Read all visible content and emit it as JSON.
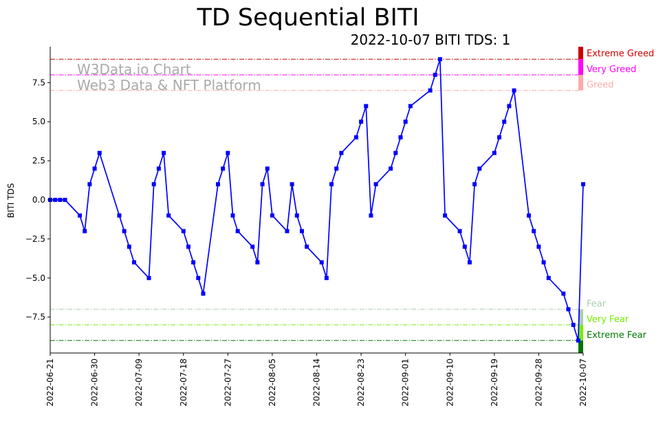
{
  "chart_data": {
    "type": "line",
    "title": "TD Sequential BITI",
    "subtitle": "2022-10-07 BITI TDS: 1",
    "xlabel": "",
    "ylabel": "BITI TDS",
    "ylim": [
      -9.8,
      9.8
    ],
    "xlim": [
      "2022-06-21",
      "2022-10-07"
    ],
    "yticks": [
      -7.5,
      -5.0,
      -2.5,
      0.0,
      2.5,
      5.0,
      7.5
    ],
    "ytick_labels": [
      "−7.5",
      "−5.0",
      "−2.5",
      "0.0",
      "2.5",
      "5.0",
      "7.5"
    ],
    "xticks": [
      "2022-06-21",
      "2022-06-30",
      "2022-07-09",
      "2022-07-18",
      "2022-07-27",
      "2022-08-05",
      "2022-08-14",
      "2022-08-23",
      "2022-09-01",
      "2022-09-10",
      "2022-09-19",
      "2022-09-28",
      "2022-10-07"
    ],
    "watermark": [
      "W3Data.io Chart",
      "Web3 Data & NFT Platform"
    ],
    "series": [
      {
        "color": "#0000ff",
        "marker": "square",
        "points": [
          [
            "2022-06-21",
            0
          ],
          [
            "2022-06-22",
            0
          ],
          [
            "2022-06-23",
            0
          ],
          [
            "2022-06-24",
            0
          ],
          [
            "2022-06-27",
            -1
          ],
          [
            "2022-06-28",
            -2
          ],
          [
            "2022-06-29",
            1
          ],
          [
            "2022-06-30",
            2
          ],
          [
            "2022-07-01",
            3
          ],
          [
            "2022-07-05",
            -1
          ],
          [
            "2022-07-06",
            -2
          ],
          [
            "2022-07-07",
            -3
          ],
          [
            "2022-07-08",
            -4
          ],
          [
            "2022-07-11",
            -5
          ],
          [
            "2022-07-12",
            1
          ],
          [
            "2022-07-13",
            2
          ],
          [
            "2022-07-14",
            3
          ],
          [
            "2022-07-15",
            -1
          ],
          [
            "2022-07-18",
            -2
          ],
          [
            "2022-07-19",
            -3
          ],
          [
            "2022-07-20",
            -4
          ],
          [
            "2022-07-21",
            -5
          ],
          [
            "2022-07-22",
            -6
          ],
          [
            "2022-07-25",
            1
          ],
          [
            "2022-07-26",
            2
          ],
          [
            "2022-07-27",
            3
          ],
          [
            "2022-07-28",
            -1
          ],
          [
            "2022-07-29",
            -2
          ],
          [
            "2022-08-01",
            -3
          ],
          [
            "2022-08-02",
            -4
          ],
          [
            "2022-08-03",
            1
          ],
          [
            "2022-08-04",
            2
          ],
          [
            "2022-08-05",
            -1
          ],
          [
            "2022-08-08",
            -2
          ],
          [
            "2022-08-09",
            1
          ],
          [
            "2022-08-10",
            -1
          ],
          [
            "2022-08-11",
            -2
          ],
          [
            "2022-08-12",
            -3
          ],
          [
            "2022-08-15",
            -4
          ],
          [
            "2022-08-16",
            -5
          ],
          [
            "2022-08-17",
            1
          ],
          [
            "2022-08-18",
            2
          ],
          [
            "2022-08-19",
            3
          ],
          [
            "2022-08-22",
            4
          ],
          [
            "2022-08-23",
            5
          ],
          [
            "2022-08-24",
            6
          ],
          [
            "2022-08-25",
            -1
          ],
          [
            "2022-08-26",
            1
          ],
          [
            "2022-08-29",
            2
          ],
          [
            "2022-08-30",
            3
          ],
          [
            "2022-08-31",
            4
          ],
          [
            "2022-09-01",
            5
          ],
          [
            "2022-09-02",
            6
          ],
          [
            "2022-09-06",
            7
          ],
          [
            "2022-09-07",
            8
          ],
          [
            "2022-09-08",
            9
          ],
          [
            "2022-09-09",
            -1
          ],
          [
            "2022-09-12",
            -2
          ],
          [
            "2022-09-13",
            -3
          ],
          [
            "2022-09-14",
            -4
          ],
          [
            "2022-09-15",
            1
          ],
          [
            "2022-09-16",
            2
          ],
          [
            "2022-09-19",
            3
          ],
          [
            "2022-09-20",
            4
          ],
          [
            "2022-09-21",
            5
          ],
          [
            "2022-09-22",
            6
          ],
          [
            "2022-09-23",
            7
          ],
          [
            "2022-09-26",
            -1
          ],
          [
            "2022-09-27",
            -2
          ],
          [
            "2022-09-28",
            -3
          ],
          [
            "2022-09-29",
            -4
          ],
          [
            "2022-09-30",
            -5
          ],
          [
            "2022-10-03",
            -6
          ],
          [
            "2022-10-04",
            -7
          ],
          [
            "2022-10-05",
            -8
          ],
          [
            "2022-10-06",
            -9
          ],
          [
            "2022-10-07",
            1
          ]
        ]
      }
    ],
    "reference_lines": [
      {
        "label": "Extreme Greed",
        "y": 9,
        "color": "#cc0000"
      },
      {
        "label": "Very Greed",
        "y": 8,
        "color": "#ff00ff"
      },
      {
        "label": "Greed",
        "y": 7,
        "color": "#ffaaaa"
      },
      {
        "label": "Fear",
        "y": -7,
        "color": "#aaccaa"
      },
      {
        "label": "Very Fear",
        "y": -8,
        "color": "#77ee00"
      },
      {
        "label": "Extreme Fear",
        "y": -9,
        "color": "#007700"
      }
    ],
    "zone_bars": [
      {
        "from": 9,
        "to": 10,
        "color": "#cc0000"
      },
      {
        "from": 8,
        "to": 9,
        "color": "#ff00ff"
      },
      {
        "from": 7,
        "to": 8,
        "color": "#ffaaaa"
      },
      {
        "from": -8,
        "to": -7,
        "color": "#aaccaa"
      },
      {
        "from": -9,
        "to": -8,
        "color": "#77ee00"
      },
      {
        "from": -10,
        "to": -9,
        "color": "#007700"
      }
    ]
  }
}
